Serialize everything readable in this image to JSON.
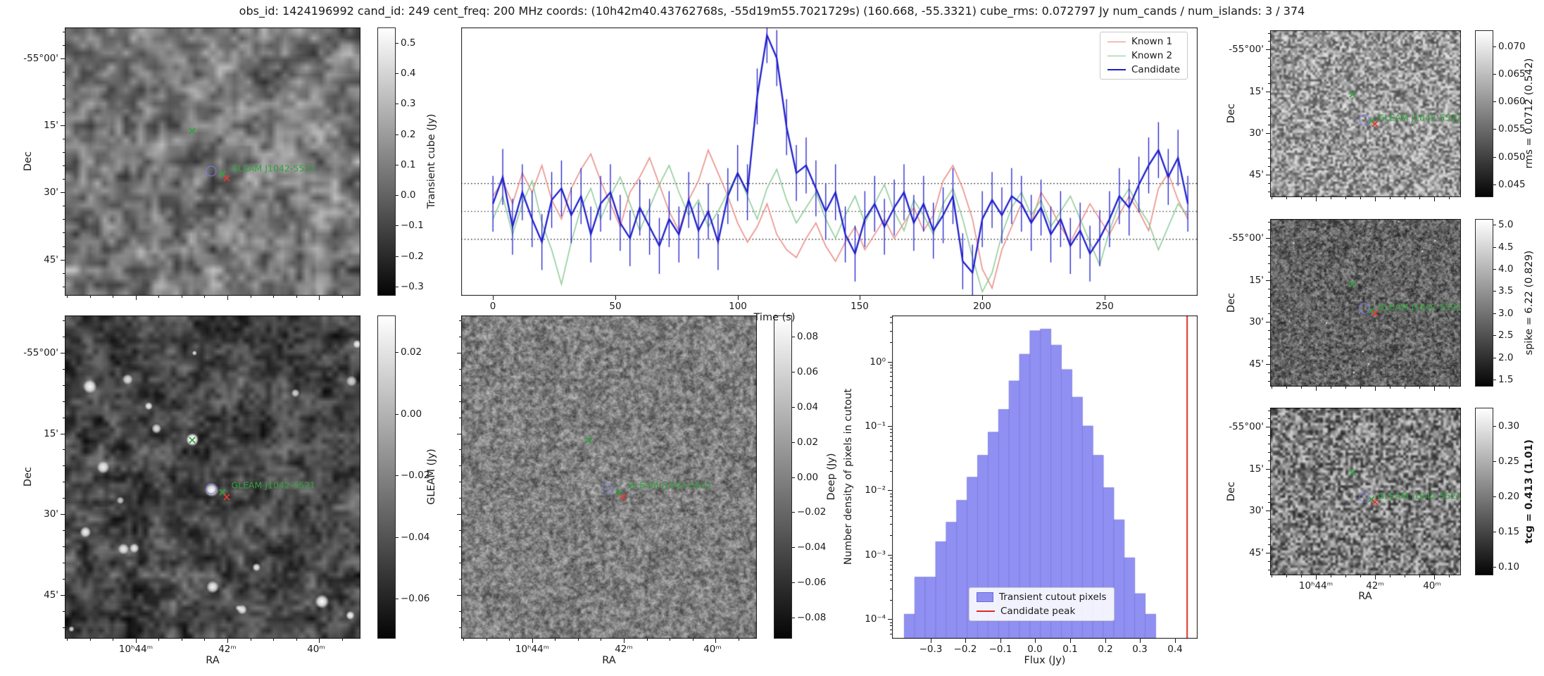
{
  "title": "obs_id: 1424196992 cand_id: 249 cent_freq: 200 MHz coords: (10h42m40.43762768s, -55d19m55.7021729s) (160.668, -55.3321) cube_rms: 0.072797 Jy num_cands / num_islands: 3 / 374",
  "source_label": "GLEAM J1042-5521",
  "axes": {
    "dec_label": "Dec",
    "ra_label": "RA",
    "dec_ticks": [
      "-55°00'",
      "15'",
      "30'",
      "45'"
    ],
    "ra_ticks": [
      "10ʰ44ᵐ",
      "42ᵐ",
      "40ᵐ"
    ]
  },
  "markers": {
    "known1_x": {
      "fx": 0.432,
      "fy": 0.385,
      "color": "#2fa33a"
    },
    "known2_x": {
      "fx": 0.533,
      "fy": 0.546,
      "color": "#2fa33a"
    },
    "candidate_circle": {
      "fx": 0.495,
      "fy": 0.535,
      "color": "#7b7bf0"
    },
    "peak_x": {
      "fx": 0.548,
      "fy": 0.562,
      "color": "#e23b2e"
    },
    "label": {
      "fx": 0.563,
      "fy": 0.524,
      "color": "#2fa33a"
    }
  },
  "lightcurve": {
    "xlabel": "Time (s)",
    "xticks": {
      "labels": [
        "0",
        "50",
        "100",
        "150",
        "200",
        "250"
      ],
      "values": [
        0,
        50,
        100,
        150,
        200,
        250
      ]
    },
    "legend": [
      {
        "label": "Known 1",
        "color": "#e8837a"
      },
      {
        "label": "Known 2",
        "color": "#85c78f"
      },
      {
        "label": "Candidate",
        "color": "#1f1fcd"
      }
    ]
  },
  "histogram": {
    "ylabel": "Number density of pixels in cutout",
    "xlabel": "Flux (Jy)",
    "xticks": {
      "labels": [
        "−0.3",
        "−0.2",
        "−0.1",
        "0.0",
        "0.1",
        "0.2",
        "0.3",
        "0.4"
      ],
      "values": [
        -0.3,
        -0.2,
        -0.1,
        0.0,
        0.1,
        0.2,
        0.3,
        0.4
      ]
    },
    "yticks": {
      "labels": [
        "10⁰",
        "10⁻¹",
        "10⁻²",
        "10⁻³",
        "10⁻⁴"
      ],
      "values": [
        1,
        0.1,
        0.01,
        0.001,
        0.0001
      ]
    },
    "legend": [
      {
        "label": "Transient cutout pixels",
        "color": "#9090f2"
      },
      {
        "label": "Candidate peak",
        "color": "#dd2a20"
      }
    ]
  },
  "colorbars": {
    "transient": {
      "label": "Transient cube (Jy)",
      "vmin": -0.33,
      "vmax": 0.55,
      "tick_labels": [
        "0.5",
        "0.4",
        "0.3",
        "0.2",
        "0.1",
        "0.0",
        "−0.1",
        "−0.2",
        "−0.3"
      ],
      "tick_values": [
        0.5,
        0.4,
        0.3,
        0.2,
        0.1,
        0.0,
        -0.1,
        -0.2,
        -0.3
      ]
    },
    "gleam": {
      "label": "GLEAM (Jy)",
      "vmin": -0.073,
      "vmax": 0.032,
      "tick_labels": [
        "0.02",
        "0.00",
        "−0.02",
        "−0.04",
        "−0.06"
      ],
      "tick_values": [
        0.02,
        0.0,
        -0.02,
        -0.04,
        -0.06
      ]
    },
    "deep": {
      "label": "Deep (Jy)",
      "vmin": -0.092,
      "vmax": 0.092,
      "tick_labels": [
        "0.08",
        "0.06",
        "0.04",
        "0.02",
        "0.00",
        "−0.02",
        "−0.04",
        "−0.06",
        "−0.08"
      ],
      "tick_values": [
        0.08,
        0.06,
        0.04,
        0.02,
        0.0,
        -0.02,
        -0.04,
        -0.06,
        -0.08
      ]
    },
    "rms": {
      "label": "rms = 0.0712 (0.542)",
      "vmin": 0.0427,
      "vmax": 0.0729,
      "tick_labels": [
        "0.070",
        "0.065",
        "0.060",
        "0.055",
        "0.050",
        "0.045"
      ],
      "tick_values": [
        0.07,
        0.065,
        0.06,
        0.055,
        0.05,
        0.045
      ]
    },
    "spike": {
      "label": "spike = 6.22 (0.829)",
      "vmin": 1.34,
      "vmax": 5.13,
      "tick_labels": [
        "5.0",
        "4.5",
        "4.0",
        "3.5",
        "3.0",
        "2.5",
        "2.0",
        "1.5"
      ],
      "tick_values": [
        5.0,
        4.5,
        4.0,
        3.5,
        3.0,
        2.5,
        2.0,
        1.5
      ]
    },
    "tcg": {
      "label": "tcg = 0.413 (1.01)",
      "bold": true,
      "vmin": 0.088,
      "vmax": 0.326,
      "tick_labels": [
        "0.30",
        "0.25",
        "0.20",
        "0.15",
        "0.10"
      ],
      "tick_values": [
        0.3,
        0.25,
        0.2,
        0.15,
        0.1
      ]
    }
  },
  "chart_data": [
    {
      "type": "line",
      "name": "light curves",
      "xlabel": "Time (s)",
      "xlim": [
        -13,
        288
      ],
      "ylim": [
        -0.22,
        0.48
      ],
      "dotted_hlines": [
        0.0728,
        0.0,
        -0.0728
      ],
      "legend_position": "upper right",
      "x": [
        0,
        4,
        8,
        12,
        16,
        20,
        24,
        28,
        32,
        36,
        40,
        44,
        48,
        52,
        56,
        60,
        64,
        68,
        72,
        76,
        80,
        84,
        88,
        92,
        96,
        100,
        104,
        108,
        112,
        116,
        120,
        124,
        128,
        132,
        136,
        140,
        144,
        148,
        152,
        156,
        160,
        164,
        168,
        172,
        176,
        180,
        184,
        188,
        192,
        196,
        200,
        204,
        208,
        212,
        216,
        220,
        224,
        228,
        232,
        236,
        240,
        244,
        248,
        252,
        256,
        260,
        264,
        268,
        272,
        276,
        280,
        284
      ],
      "series": [
        {
          "name": "Known 1",
          "color": "#e8837a",
          "values": [
            0.04,
            0.08,
            0.02,
            0.1,
            0.05,
            0.12,
            0.03,
            -0.02,
            0.06,
            0.11,
            0.15,
            0.08,
            0.02,
            -0.04,
            0.05,
            0.09,
            0.14,
            0.07,
            0.0,
            -0.05,
            0.03,
            0.08,
            0.16,
            0.1,
            0.04,
            -0.03,
            -0.08,
            -0.04,
            0.02,
            -0.06,
            -0.1,
            -0.12,
            -0.07,
            -0.03,
            -0.09,
            -0.13,
            -0.08,
            -0.04,
            -0.1,
            -0.06,
            -0.02,
            -0.07,
            -0.03,
            0.01,
            -0.05,
            -0.01,
            0.08,
            0.12,
            0.06,
            -0.02,
            -0.15,
            -0.2,
            -0.1,
            -0.04,
            0.02,
            -0.03,
            0.05,
            0.01,
            -0.04,
            -0.08,
            -0.03,
            0.02,
            -0.02,
            -0.06,
            -0.01,
            0.04,
            0.0,
            -0.05,
            0.06,
            0.1,
            0.03,
            -0.02
          ]
        },
        {
          "name": "Known 2",
          "color": "#85c78f",
          "values": [
            -0.02,
            0.04,
            -0.06,
            0.02,
            0.08,
            -0.03,
            -0.1,
            -0.19,
            -0.08,
            0.01,
            0.06,
            -0.02,
            0.04,
            0.09,
            0.02,
            -0.05,
            0.01,
            0.07,
            0.12,
            0.05,
            -0.01,
            0.03,
            -0.04,
            0.0,
            0.05,
            0.1,
            0.04,
            -0.02,
            0.06,
            0.11,
            0.03,
            -0.03,
            0.01,
            0.05,
            -0.02,
            -0.07,
            -0.01,
            0.04,
            -0.03,
            0.02,
            0.07,
            0.0,
            -0.05,
            0.03,
            -0.01,
            -0.06,
            0.02,
            0.06,
            -0.02,
            -0.12,
            -0.21,
            -0.16,
            -0.06,
            0.01,
            0.05,
            -0.01,
            0.03,
            -0.04,
            0.0,
            0.04,
            -0.02,
            -0.08,
            -0.14,
            -0.05,
            0.02,
            0.06,
            0.01,
            -0.03,
            -0.1,
            -0.04,
            0.02,
            -0.01
          ]
        },
        {
          "name": "Candidate",
          "color": "#1f1fcd",
          "yerr": 0.073,
          "values": [
            0.02,
            0.09,
            -0.04,
            0.05,
            -0.02,
            -0.08,
            0.03,
            0.06,
            -0.01,
            0.04,
            -0.06,
            0.02,
            0.05,
            -0.03,
            -0.07,
            0.01,
            -0.04,
            -0.09,
            -0.02,
            -0.06,
            0.03,
            -0.05,
            0.0,
            -0.08,
            0.04,
            0.1,
            0.05,
            0.3,
            0.46,
            0.4,
            0.22,
            0.1,
            0.12,
            0.06,
            0.0,
            0.05,
            -0.06,
            -0.11,
            -0.02,
            0.02,
            -0.04,
            0.01,
            0.05,
            -0.03,
            0.02,
            -0.05,
            -0.01,
            0.04,
            -0.13,
            -0.16,
            -0.02,
            0.03,
            -0.01,
            0.04,
            0.02,
            -0.03,
            0.01,
            -0.06,
            -0.02,
            -0.09,
            -0.05,
            -0.11,
            -0.07,
            -0.02,
            0.04,
            0.01,
            0.07,
            0.12,
            0.16,
            0.09,
            0.14,
            0.02
          ]
        }
      ]
    },
    {
      "type": "bar",
      "name": "flux histogram",
      "xlabel": "Flux (Jy)",
      "ylabel": "Number density of pixels in cutout",
      "y_scale": "log",
      "xlim": [
        -0.41,
        0.465
      ],
      "ylim": [
        5e-05,
        5.2
      ],
      "bin_width": 0.03,
      "bin_centers": [
        -0.36,
        -0.33,
        -0.3,
        -0.27,
        -0.24,
        -0.21,
        -0.18,
        -0.15,
        -0.12,
        -0.09,
        -0.06,
        -0.03,
        0.0,
        0.03,
        0.06,
        0.09,
        0.12,
        0.15,
        0.18,
        0.21,
        0.24,
        0.27,
        0.3,
        0.33
      ],
      "densities": [
        0.00012,
        0.00045,
        0.00045,
        0.0016,
        0.0032,
        0.007,
        0.016,
        0.035,
        0.08,
        0.18,
        0.5,
        1.3,
        3.0,
        3.2,
        1.8,
        0.75,
        0.28,
        0.1,
        0.035,
        0.011,
        0.0035,
        0.0009,
        0.00025,
        0.00012
      ],
      "candidate_peak": 0.435,
      "bar_color": "#9090f2",
      "line_color": "#dd2a20",
      "legend_position": "lower center"
    }
  ]
}
